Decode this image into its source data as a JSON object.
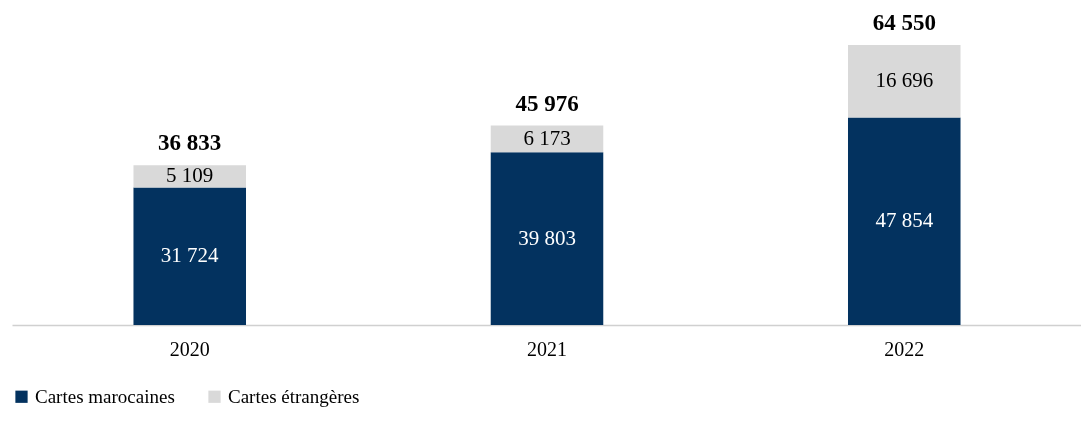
{
  "chart_data": {
    "type": "bar",
    "stacked": true,
    "categories": [
      "2020",
      "2021",
      "2022"
    ],
    "series": [
      {
        "name": "Cartes marocaines",
        "color": "#03325f",
        "values": [
          31724,
          39803,
          47854
        ],
        "value_labels": [
          "31 724",
          "39 803",
          "47 854"
        ]
      },
      {
        "name": "Cartes étrangères",
        "color": "#d9d9d9",
        "values": [
          5109,
          6173,
          16696
        ],
        "value_labels": [
          "5 109",
          "6 173",
          "16 696"
        ]
      }
    ],
    "totals": [
      "36 833",
      "45 976",
      "64 550"
    ],
    "legend": "bottom",
    "grid": false
  }
}
